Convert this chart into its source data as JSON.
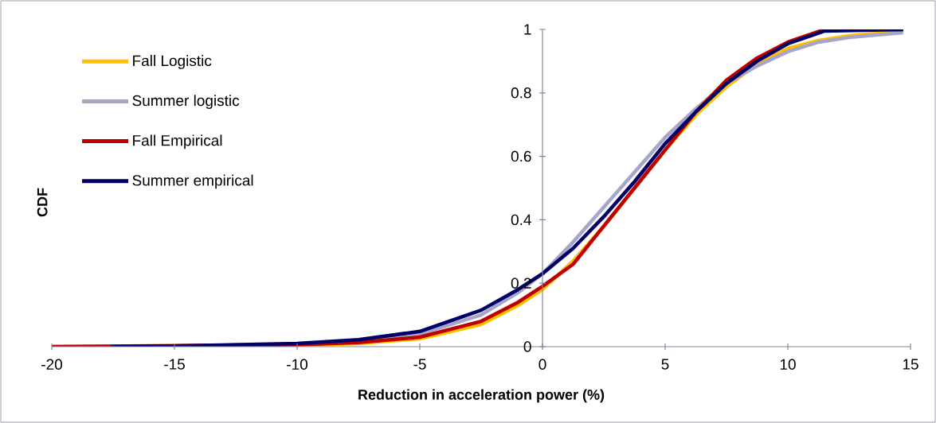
{
  "chart_data": {
    "type": "line",
    "xlabel": "Reduction in acceleration power (%)",
    "ylabel": "CDF",
    "xlim": [
      -20,
      15
    ],
    "ylim": [
      0,
      1
    ],
    "xticks": [
      -20,
      -15,
      -10,
      -5,
      0,
      5,
      10,
      15
    ],
    "yticks": [
      0,
      0.2,
      0.4,
      0.6,
      0.8,
      1
    ],
    "legend": "top left",
    "series": [
      {
        "name": "Fall Logistic",
        "color": "#ffc000",
        "x": [
          -10,
          -7.5,
          -5,
          -2.5,
          -1,
          0,
          1.25,
          2.5,
          3.75,
          5,
          6.25,
          7.5,
          8.75,
          10,
          11.25,
          12.5,
          14.7
        ],
        "values": [
          0.004,
          0.01,
          0.025,
          0.07,
          0.13,
          0.18,
          0.27,
          0.38,
          0.5,
          0.62,
          0.73,
          0.82,
          0.89,
          0.94,
          0.965,
          0.98,
          0.995
        ]
      },
      {
        "name": "Summer logistic",
        "color": "#a6a6ca",
        "x": [
          -20,
          -15,
          -10,
          -7.5,
          -5,
          -2.5,
          -1,
          0,
          1.25,
          2.5,
          3.75,
          5,
          6.25,
          7.5,
          8.75,
          10,
          11.25,
          12.5,
          14.7
        ],
        "values": [
          0,
          0.002,
          0.008,
          0.018,
          0.04,
          0.1,
          0.17,
          0.23,
          0.33,
          0.44,
          0.55,
          0.66,
          0.75,
          0.83,
          0.885,
          0.93,
          0.96,
          0.975,
          0.99
        ]
      },
      {
        "name": "Fall Empirical",
        "color": "#c00000",
        "x": [
          -20,
          -15,
          -10,
          -7.5,
          -5,
          -2.5,
          -1,
          0,
          1.25,
          2.5,
          3.75,
          5,
          6.25,
          7.5,
          8.75,
          10,
          11.5,
          14.7
        ],
        "values": [
          0,
          0.003,
          0.006,
          0.013,
          0.03,
          0.08,
          0.14,
          0.19,
          0.26,
          0.38,
          0.5,
          0.62,
          0.74,
          0.84,
          0.91,
          0.96,
          1,
          1
        ]
      },
      {
        "name": "Summer empirical",
        "color": "#000066",
        "x": [
          -17.6,
          -15,
          -10,
          -7.5,
          -5,
          -2.5,
          -1,
          0,
          1.25,
          2.5,
          3.75,
          5,
          6.25,
          7.5,
          8.75,
          10,
          11.5,
          14.7
        ],
        "values": [
          0,
          0.002,
          0.01,
          0.022,
          0.048,
          0.115,
          0.18,
          0.23,
          0.31,
          0.41,
          0.52,
          0.64,
          0.74,
          0.83,
          0.9,
          0.955,
          0.995,
          1
        ]
      }
    ]
  }
}
